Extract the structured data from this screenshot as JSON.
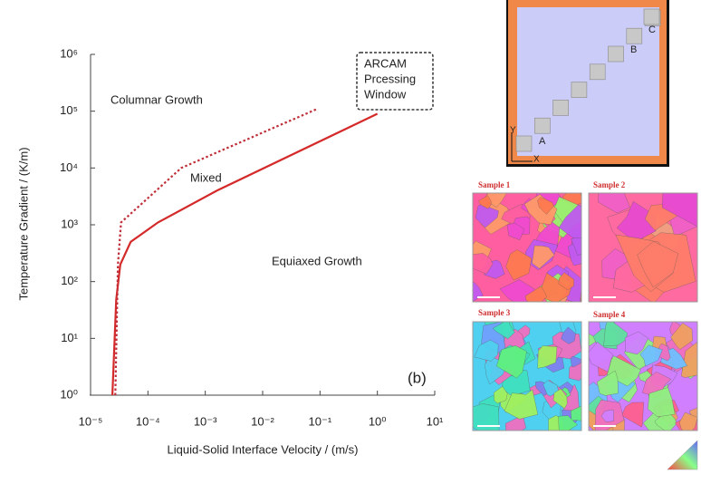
{
  "chart_data": {
    "type": "line",
    "xlabel": "Liquid-Solid Interface Velocity / (m/s)",
    "ylabel": "Temperature Gradient / (K/m)",
    "log_x": true,
    "log_y": true,
    "xlim": [
      1e-05,
      10
    ],
    "ylim": [
      1,
      1000000
    ],
    "xticks": [
      {
        "value": 1e-05,
        "label": "10⁻⁵"
      },
      {
        "value": 0.0001,
        "label": "10⁻⁴"
      },
      {
        "value": 0.001,
        "label": "10⁻³"
      },
      {
        "value": 0.01,
        "label": "10⁻²"
      },
      {
        "value": 0.1,
        "label": "10⁻¹"
      },
      {
        "value": 1,
        "label": "10⁰"
      },
      {
        "value": 10,
        "label": "10¹"
      }
    ],
    "yticks": [
      {
        "value": 1,
        "label": "10⁰"
      },
      {
        "value": 10,
        "label": "10¹"
      },
      {
        "value": 100,
        "label": "10²"
      },
      {
        "value": 1000,
        "label": "10³"
      },
      {
        "value": 10000,
        "label": "10⁴"
      },
      {
        "value": 100000,
        "label": "10⁵"
      },
      {
        "value": 1000000,
        "label": "10⁶"
      }
    ],
    "series": [
      {
        "color": "#d42a2a",
        "style": "solid",
        "x": [
          2.4e-05,
          2.8e-05,
          3.3e-05,
          5e-05,
          0.00015,
          0.0016,
          1
        ],
        "values": [
          1,
          48,
          200,
          500,
          1100,
          4000,
          90000
        ]
      },
      {
        "color": "#c0303a",
        "style": "dotted",
        "x": [
          2.7e-05,
          3e-05,
          3.4e-05,
          0.00038,
          0.09
        ],
        "values": [
          1,
          200,
          1100,
          10000,
          110000
        ]
      }
    ],
    "annotations": [
      "Columnar Growth",
      "Mixed",
      "Equiaxed Growth",
      "(b)"
    ],
    "window_label": [
      "ARCAM",
      "Prcessing",
      "Window"
    ]
  },
  "diagram": {
    "points": [
      "A",
      "B",
      "C"
    ],
    "axes": [
      "Y",
      "X"
    ]
  },
  "samples": [
    "Sample 1",
    "Sample 2",
    "Sample 3",
    "Sample 4"
  ]
}
